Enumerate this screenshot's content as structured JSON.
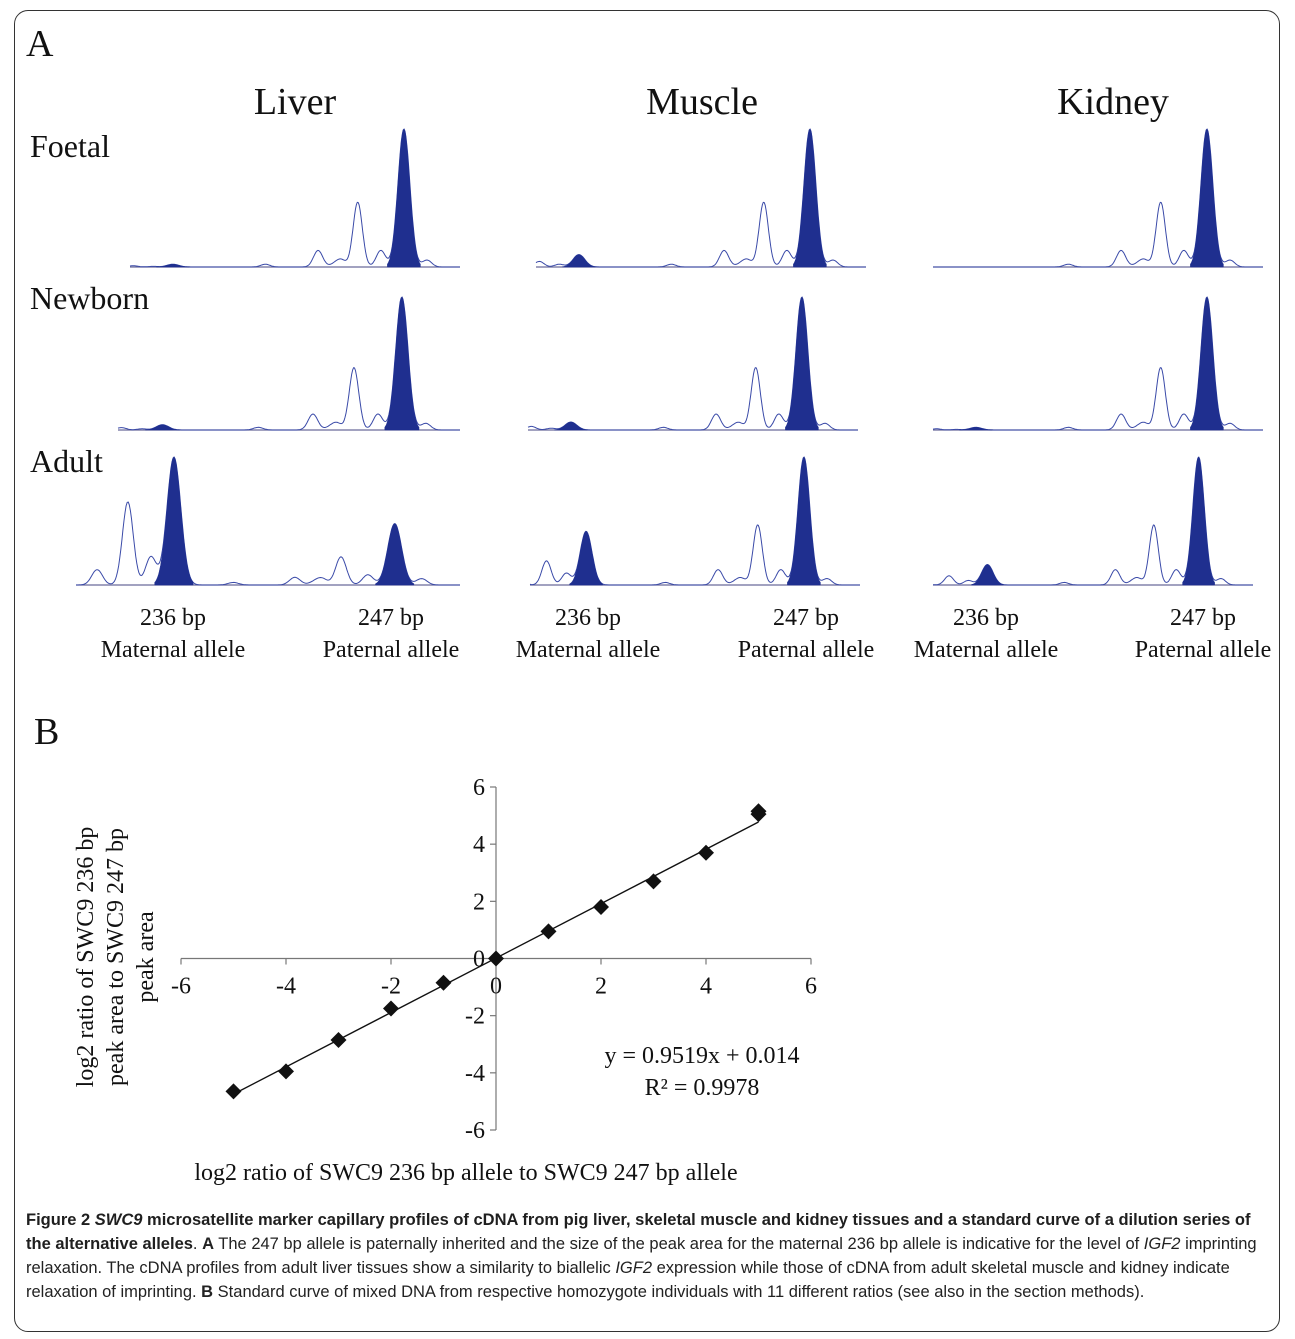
{
  "panel_a": {
    "letter": "A",
    "tissues": [
      "Liver",
      "Muscle",
      "Kidney"
    ],
    "stages": [
      "Foetal",
      "Newborn",
      "Adult"
    ],
    "allele_labels": {
      "maternal_size": "236 bp",
      "maternal_name": "Maternal allele",
      "paternal_size": "247 bp",
      "paternal_name": "Paternal allele"
    },
    "profile_colors": {
      "filled_peak": "#1f2f8f",
      "outline": "#3a4aa8",
      "baseline": "#6b6b9a"
    },
    "profiles": [
      {
        "stage": "Foetal",
        "tissue": "Liver",
        "maternal_peak_rel": 0.02,
        "paternal_peak_rel": 1.0
      },
      {
        "stage": "Foetal",
        "tissue": "Muscle",
        "maternal_peak_rel": 0.09,
        "paternal_peak_rel": 1.0
      },
      {
        "stage": "Foetal",
        "tissue": "Kidney",
        "maternal_peak_rel": 0.0,
        "paternal_peak_rel": 1.0
      },
      {
        "stage": "Newborn",
        "tissue": "Liver",
        "maternal_peak_rel": 0.04,
        "paternal_peak_rel": 1.0
      },
      {
        "stage": "Newborn",
        "tissue": "Muscle",
        "maternal_peak_rel": 0.06,
        "paternal_peak_rel": 1.0
      },
      {
        "stage": "Newborn",
        "tissue": "Kidney",
        "maternal_peak_rel": 0.02,
        "paternal_peak_rel": 1.0
      },
      {
        "stage": "Adult",
        "tissue": "Liver",
        "maternal_peak_rel": 1.0,
        "paternal_peak_rel": 0.48
      },
      {
        "stage": "Adult",
        "tissue": "Muscle",
        "maternal_peak_rel": 0.42,
        "paternal_peak_rel": 1.0
      },
      {
        "stage": "Adult",
        "tissue": "Kidney",
        "maternal_peak_rel": 0.16,
        "paternal_peak_rel": 1.0
      }
    ]
  },
  "panel_b": {
    "letter": "B"
  },
  "chart_data": {
    "type": "scatter",
    "title": "",
    "xlabel": "log2 ratio of SWC9 236 bp allele to SWC9 247 bp allele",
    "ylabel_lines": [
      "log2 ratio of SWC9 236 bp",
      "peak area to SWC9 247 bp",
      "peak area"
    ],
    "xlim": [
      -6,
      6
    ],
    "ylim": [
      -6,
      6
    ],
    "xticks": [
      "-6",
      "-4",
      "-2",
      "0",
      "2",
      "4",
      "6"
    ],
    "yticks": [
      "6",
      "4",
      "2",
      "0",
      "-2",
      "-4",
      "-6"
    ],
    "x": [
      -5,
      -4,
      -3,
      -2,
      -1,
      0,
      1,
      2,
      3,
      4,
      5,
      5
    ],
    "y": [
      -4.65,
      -3.95,
      -2.85,
      -1.75,
      -0.85,
      0.0,
      0.95,
      1.8,
      2.7,
      3.7,
      5.05,
      5.15
    ],
    "trendline": {
      "slope": 0.9519,
      "intercept": 0.014
    },
    "equation": "y = 0.9519x + 0.014",
    "r_squared": "R² = 0.9978",
    "marker_color": "#111111",
    "grid": false
  },
  "caption": {
    "figure_label": "Figure 2",
    "title_marker": "SWC9",
    "title_rest": " microsatellite marker capillary profiles of cDNA from pig liver, skeletal muscle and kidney tissues and a standard curve of a dilution series of the alternative alleles",
    "title_end": ". ",
    "a_label": "A",
    "a_text_1": " The 247 bp allele is paternally inherited and the size of the peak area for the maternal 236 bp allele is indicative for the level of ",
    "igf2": "IGF2",
    "a_text_2": " imprinting relaxation. The cDNA profiles from adult liver tissues show a similarity to biallelic ",
    "a_text_3": " expression while those of cDNA from adult skeletal muscle and kidney indicate relaxation of imprinting. ",
    "b_label": "B",
    "b_text": " Standard curve of mixed DNA from respective homozygote individuals with 11 different ratios (see also in the section methods)."
  }
}
